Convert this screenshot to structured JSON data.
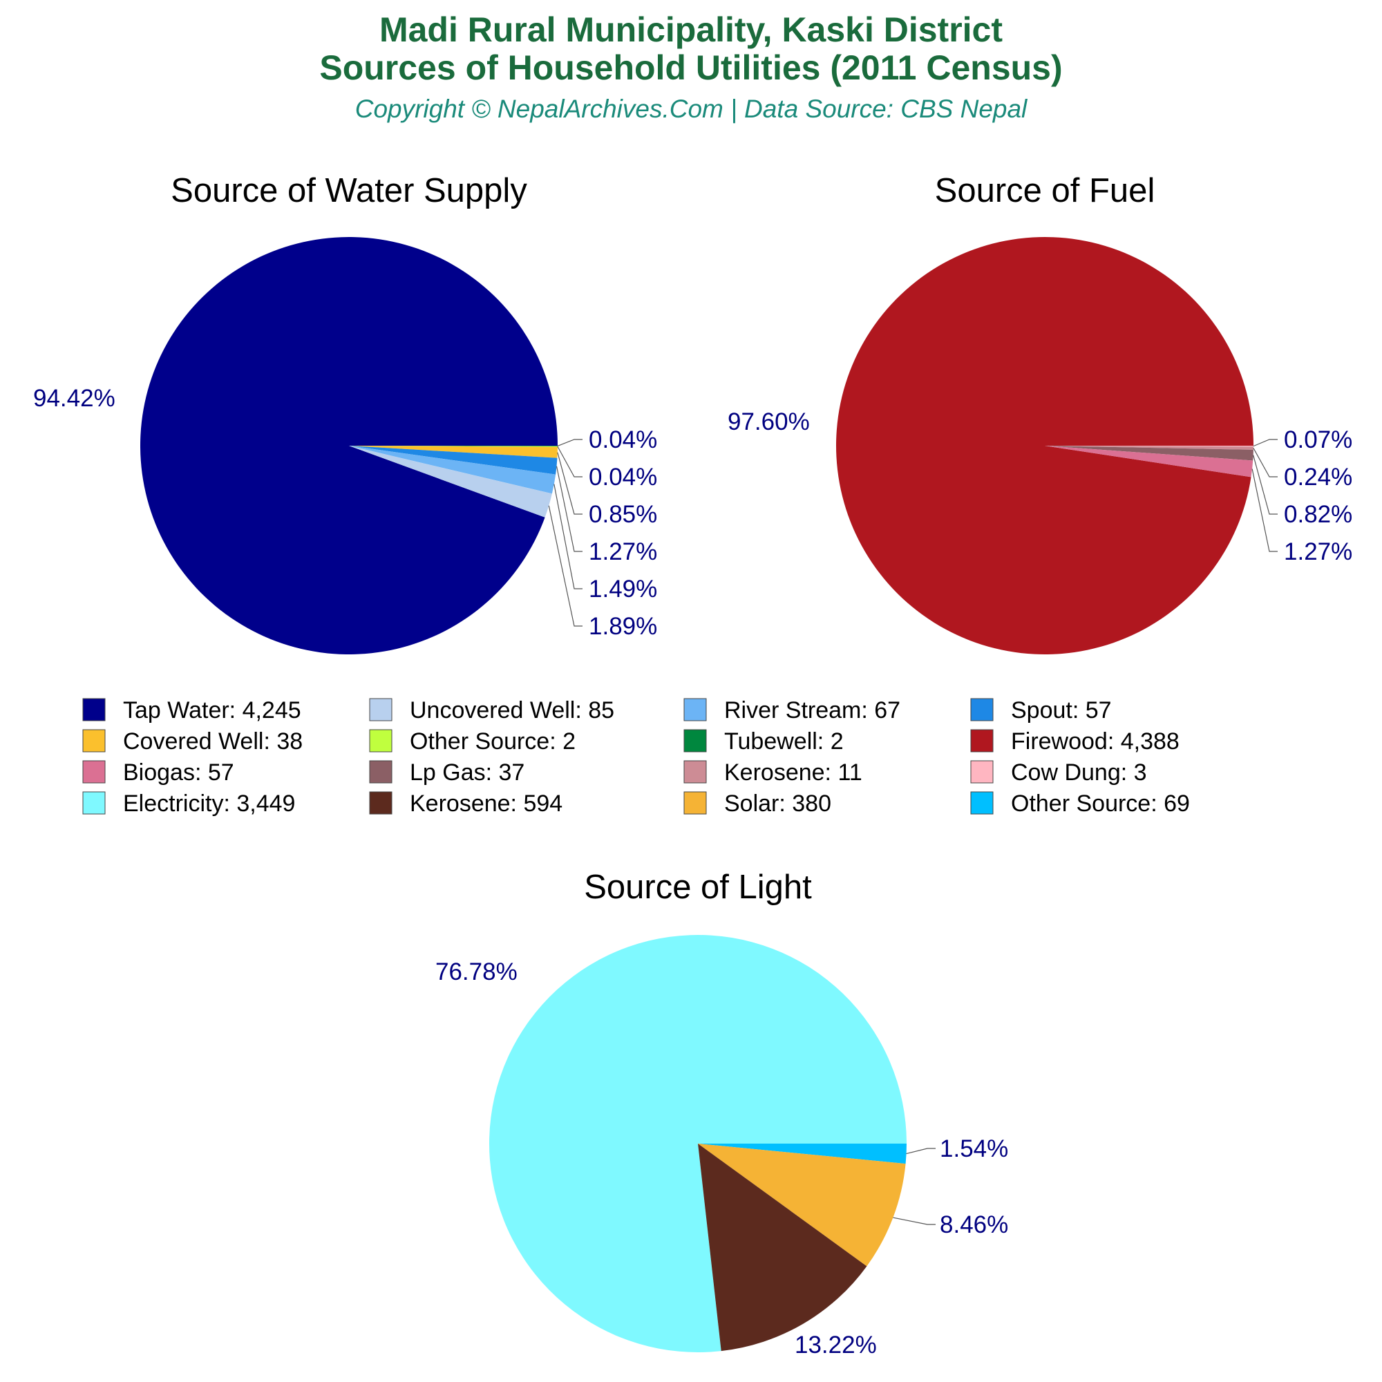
{
  "header": {
    "title_line1": "Madi Rural Municipality, Kaski District",
    "title_line2": "Sources of Household Utilities (2011 Census)",
    "subtitle": "Copyright © NepalArchives.Com | Data Source: CBS Nepal"
  },
  "chart_data": [
    {
      "type": "pie",
      "title": "Source of Water Supply",
      "slices": [
        {
          "label": "Tap Water",
          "value": 4245,
          "pct": "94.42%",
          "color": "#00008b"
        },
        {
          "label": "Uncovered Well",
          "value": 85,
          "pct": "1.89%",
          "color": "#b8d0ee"
        },
        {
          "label": "River Stream",
          "value": 67,
          "pct": "1.49%",
          "color": "#6cb4f5"
        },
        {
          "label": "Spout",
          "value": 57,
          "pct": "1.27%",
          "color": "#1e88e5"
        },
        {
          "label": "Covered Well",
          "value": 38,
          "pct": "0.85%",
          "color": "#fbc02d"
        },
        {
          "label": "Other Source",
          "value": 2,
          "pct": "0.04%",
          "color": "#c0ff3e"
        },
        {
          "label": "Tubewell",
          "value": 2,
          "pct": "0.04%",
          "color": "#00873e"
        }
      ]
    },
    {
      "type": "pie",
      "title": "Source of Fuel",
      "slices": [
        {
          "label": "Firewood",
          "value": 4388,
          "pct": "97.60%",
          "color": "#b0171f"
        },
        {
          "label": "Biogas",
          "value": 57,
          "pct": "1.27%",
          "color": "#db7093"
        },
        {
          "label": "Lp Gas",
          "value": 37,
          "pct": "0.82%",
          "color": "#8b5f65"
        },
        {
          "label": "Kerosene",
          "value": 11,
          "pct": "0.24%",
          "color": "#cd8c95"
        },
        {
          "label": "Cow Dung",
          "value": 3,
          "pct": "0.07%",
          "color": "#ffb6c1"
        }
      ]
    },
    {
      "type": "pie",
      "title": "Source of Light",
      "slices": [
        {
          "label": "Electricity",
          "value": 3449,
          "pct": "76.78%",
          "color": "#7ff9ff"
        },
        {
          "label": "Kerosene",
          "value": 594,
          "pct": "13.22%",
          "color": "#5c2a1e"
        },
        {
          "label": "Solar",
          "value": 380,
          "pct": "8.46%",
          "color": "#f5b335"
        },
        {
          "label": "Other Source",
          "value": 69,
          "pct": "1.54%",
          "color": "#00bfff"
        }
      ]
    }
  ],
  "legend": {
    "items": [
      {
        "text": "Tap Water: 4,245",
        "color": "#00008b"
      },
      {
        "text": "Uncovered Well: 85",
        "color": "#b8d0ee"
      },
      {
        "text": "River Stream: 67",
        "color": "#6cb4f5"
      },
      {
        "text": "Spout: 57",
        "color": "#1e88e5"
      },
      {
        "text": "Covered Well: 38",
        "color": "#fbc02d"
      },
      {
        "text": "Other Source: 2",
        "color": "#c0ff3e"
      },
      {
        "text": "Tubewell: 2",
        "color": "#00873e"
      },
      {
        "text": "Firewood: 4,388",
        "color": "#b0171f"
      },
      {
        "text": "Biogas: 57",
        "color": "#db7093"
      },
      {
        "text": "Lp Gas: 37",
        "color": "#8b5f65"
      },
      {
        "text": "Kerosene: 11",
        "color": "#cd8c95"
      },
      {
        "text": "Cow Dung: 3",
        "color": "#ffb6c1"
      },
      {
        "text": "Electricity: 3,449",
        "color": "#7ff9ff"
      },
      {
        "text": "Kerosene: 594",
        "color": "#5c2a1e"
      },
      {
        "text": "Solar: 380",
        "color": "#f5b335"
      },
      {
        "text": "Other Source: 69",
        "color": "#00bfff"
      }
    ]
  }
}
